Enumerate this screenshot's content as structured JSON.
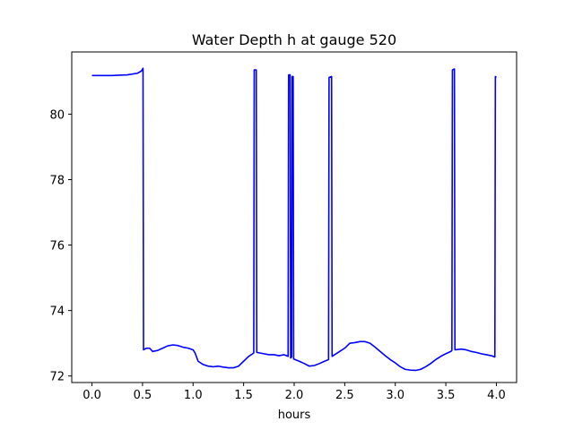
{
  "chart_data": {
    "type": "line",
    "title": "Water Depth h at gauge 520",
    "xlabel": "hours",
    "ylabel": "",
    "xlim": [
      -0.2,
      4.2
    ],
    "ylim": [
      71.8,
      81.9
    ],
    "xticks": [
      0.0,
      0.5,
      1.0,
      1.5,
      2.0,
      2.5,
      3.0,
      3.5,
      4.0
    ],
    "xtick_labels": [
      "0.0",
      "0.5",
      "1.0",
      "1.5",
      "2.0",
      "2.5",
      "3.0",
      "3.5",
      "4.0"
    ],
    "yticks": [
      72,
      74,
      76,
      78,
      80
    ],
    "ytick_labels": [
      "72",
      "74",
      "76",
      "78",
      "80"
    ],
    "grid": false,
    "series": [
      {
        "color": "#0000ff",
        "points": [
          [
            0.0,
            81.18
          ],
          [
            0.2,
            81.18
          ],
          [
            0.35,
            81.2
          ],
          [
            0.45,
            81.25
          ],
          [
            0.49,
            81.32
          ],
          [
            0.505,
            81.4
          ],
          [
            0.51,
            72.8
          ],
          [
            0.54,
            72.85
          ],
          [
            0.57,
            72.85
          ],
          [
            0.6,
            72.75
          ],
          [
            0.65,
            72.78
          ],
          [
            0.7,
            72.85
          ],
          [
            0.75,
            72.92
          ],
          [
            0.8,
            72.95
          ],
          [
            0.85,
            72.93
          ],
          [
            0.9,
            72.88
          ],
          [
            0.95,
            72.85
          ],
          [
            1.0,
            72.8
          ],
          [
            1.02,
            72.7
          ],
          [
            1.05,
            72.45
          ],
          [
            1.1,
            72.35
          ],
          [
            1.15,
            72.3
          ],
          [
            1.2,
            72.28
          ],
          [
            1.25,
            72.3
          ],
          [
            1.3,
            72.27
          ],
          [
            1.35,
            72.25
          ],
          [
            1.4,
            72.25
          ],
          [
            1.45,
            72.3
          ],
          [
            1.5,
            72.45
          ],
          [
            1.55,
            72.6
          ],
          [
            1.6,
            72.7
          ],
          [
            1.605,
            81.35
          ],
          [
            1.625,
            81.35
          ],
          [
            1.63,
            72.72
          ],
          [
            1.7,
            72.68
          ],
          [
            1.75,
            72.65
          ],
          [
            1.8,
            72.65
          ],
          [
            1.85,
            72.62
          ],
          [
            1.9,
            72.65
          ],
          [
            1.94,
            72.6
          ],
          [
            1.945,
            81.2
          ],
          [
            1.96,
            81.2
          ],
          [
            1.965,
            72.55
          ],
          [
            1.975,
            72.58
          ],
          [
            1.98,
            81.15
          ],
          [
            1.99,
            81.15
          ],
          [
            1.995,
            72.52
          ],
          [
            2.05,
            72.45
          ],
          [
            2.1,
            72.38
          ],
          [
            2.15,
            72.3
          ],
          [
            2.2,
            72.32
          ],
          [
            2.25,
            72.38
          ],
          [
            2.3,
            72.45
          ],
          [
            2.34,
            72.5
          ],
          [
            2.345,
            81.12
          ],
          [
            2.37,
            81.15
          ],
          [
            2.375,
            72.6
          ],
          [
            2.4,
            72.65
          ],
          [
            2.45,
            72.75
          ],
          [
            2.5,
            72.85
          ],
          [
            2.55,
            73.0
          ],
          [
            2.6,
            73.02
          ],
          [
            2.65,
            73.05
          ],
          [
            2.7,
            73.05
          ],
          [
            2.75,
            73.0
          ],
          [
            2.8,
            72.88
          ],
          [
            2.85,
            72.75
          ],
          [
            2.9,
            72.62
          ],
          [
            2.95,
            72.5
          ],
          [
            3.0,
            72.4
          ],
          [
            3.05,
            72.28
          ],
          [
            3.1,
            72.2
          ],
          [
            3.15,
            72.18
          ],
          [
            3.2,
            72.17
          ],
          [
            3.25,
            72.2
          ],
          [
            3.3,
            72.28
          ],
          [
            3.35,
            72.38
          ],
          [
            3.4,
            72.5
          ],
          [
            3.45,
            72.6
          ],
          [
            3.5,
            72.68
          ],
          [
            3.55,
            72.75
          ],
          [
            3.56,
            72.78
          ],
          [
            3.565,
            81.35
          ],
          [
            3.585,
            81.38
          ],
          [
            3.59,
            72.8
          ],
          [
            3.65,
            72.82
          ],
          [
            3.7,
            72.8
          ],
          [
            3.75,
            72.75
          ],
          [
            3.8,
            72.72
          ],
          [
            3.85,
            72.68
          ],
          [
            3.9,
            72.65
          ],
          [
            3.95,
            72.62
          ],
          [
            3.985,
            72.58
          ],
          [
            3.99,
            81.15
          ],
          [
            4.0,
            81.12
          ]
        ]
      }
    ]
  }
}
